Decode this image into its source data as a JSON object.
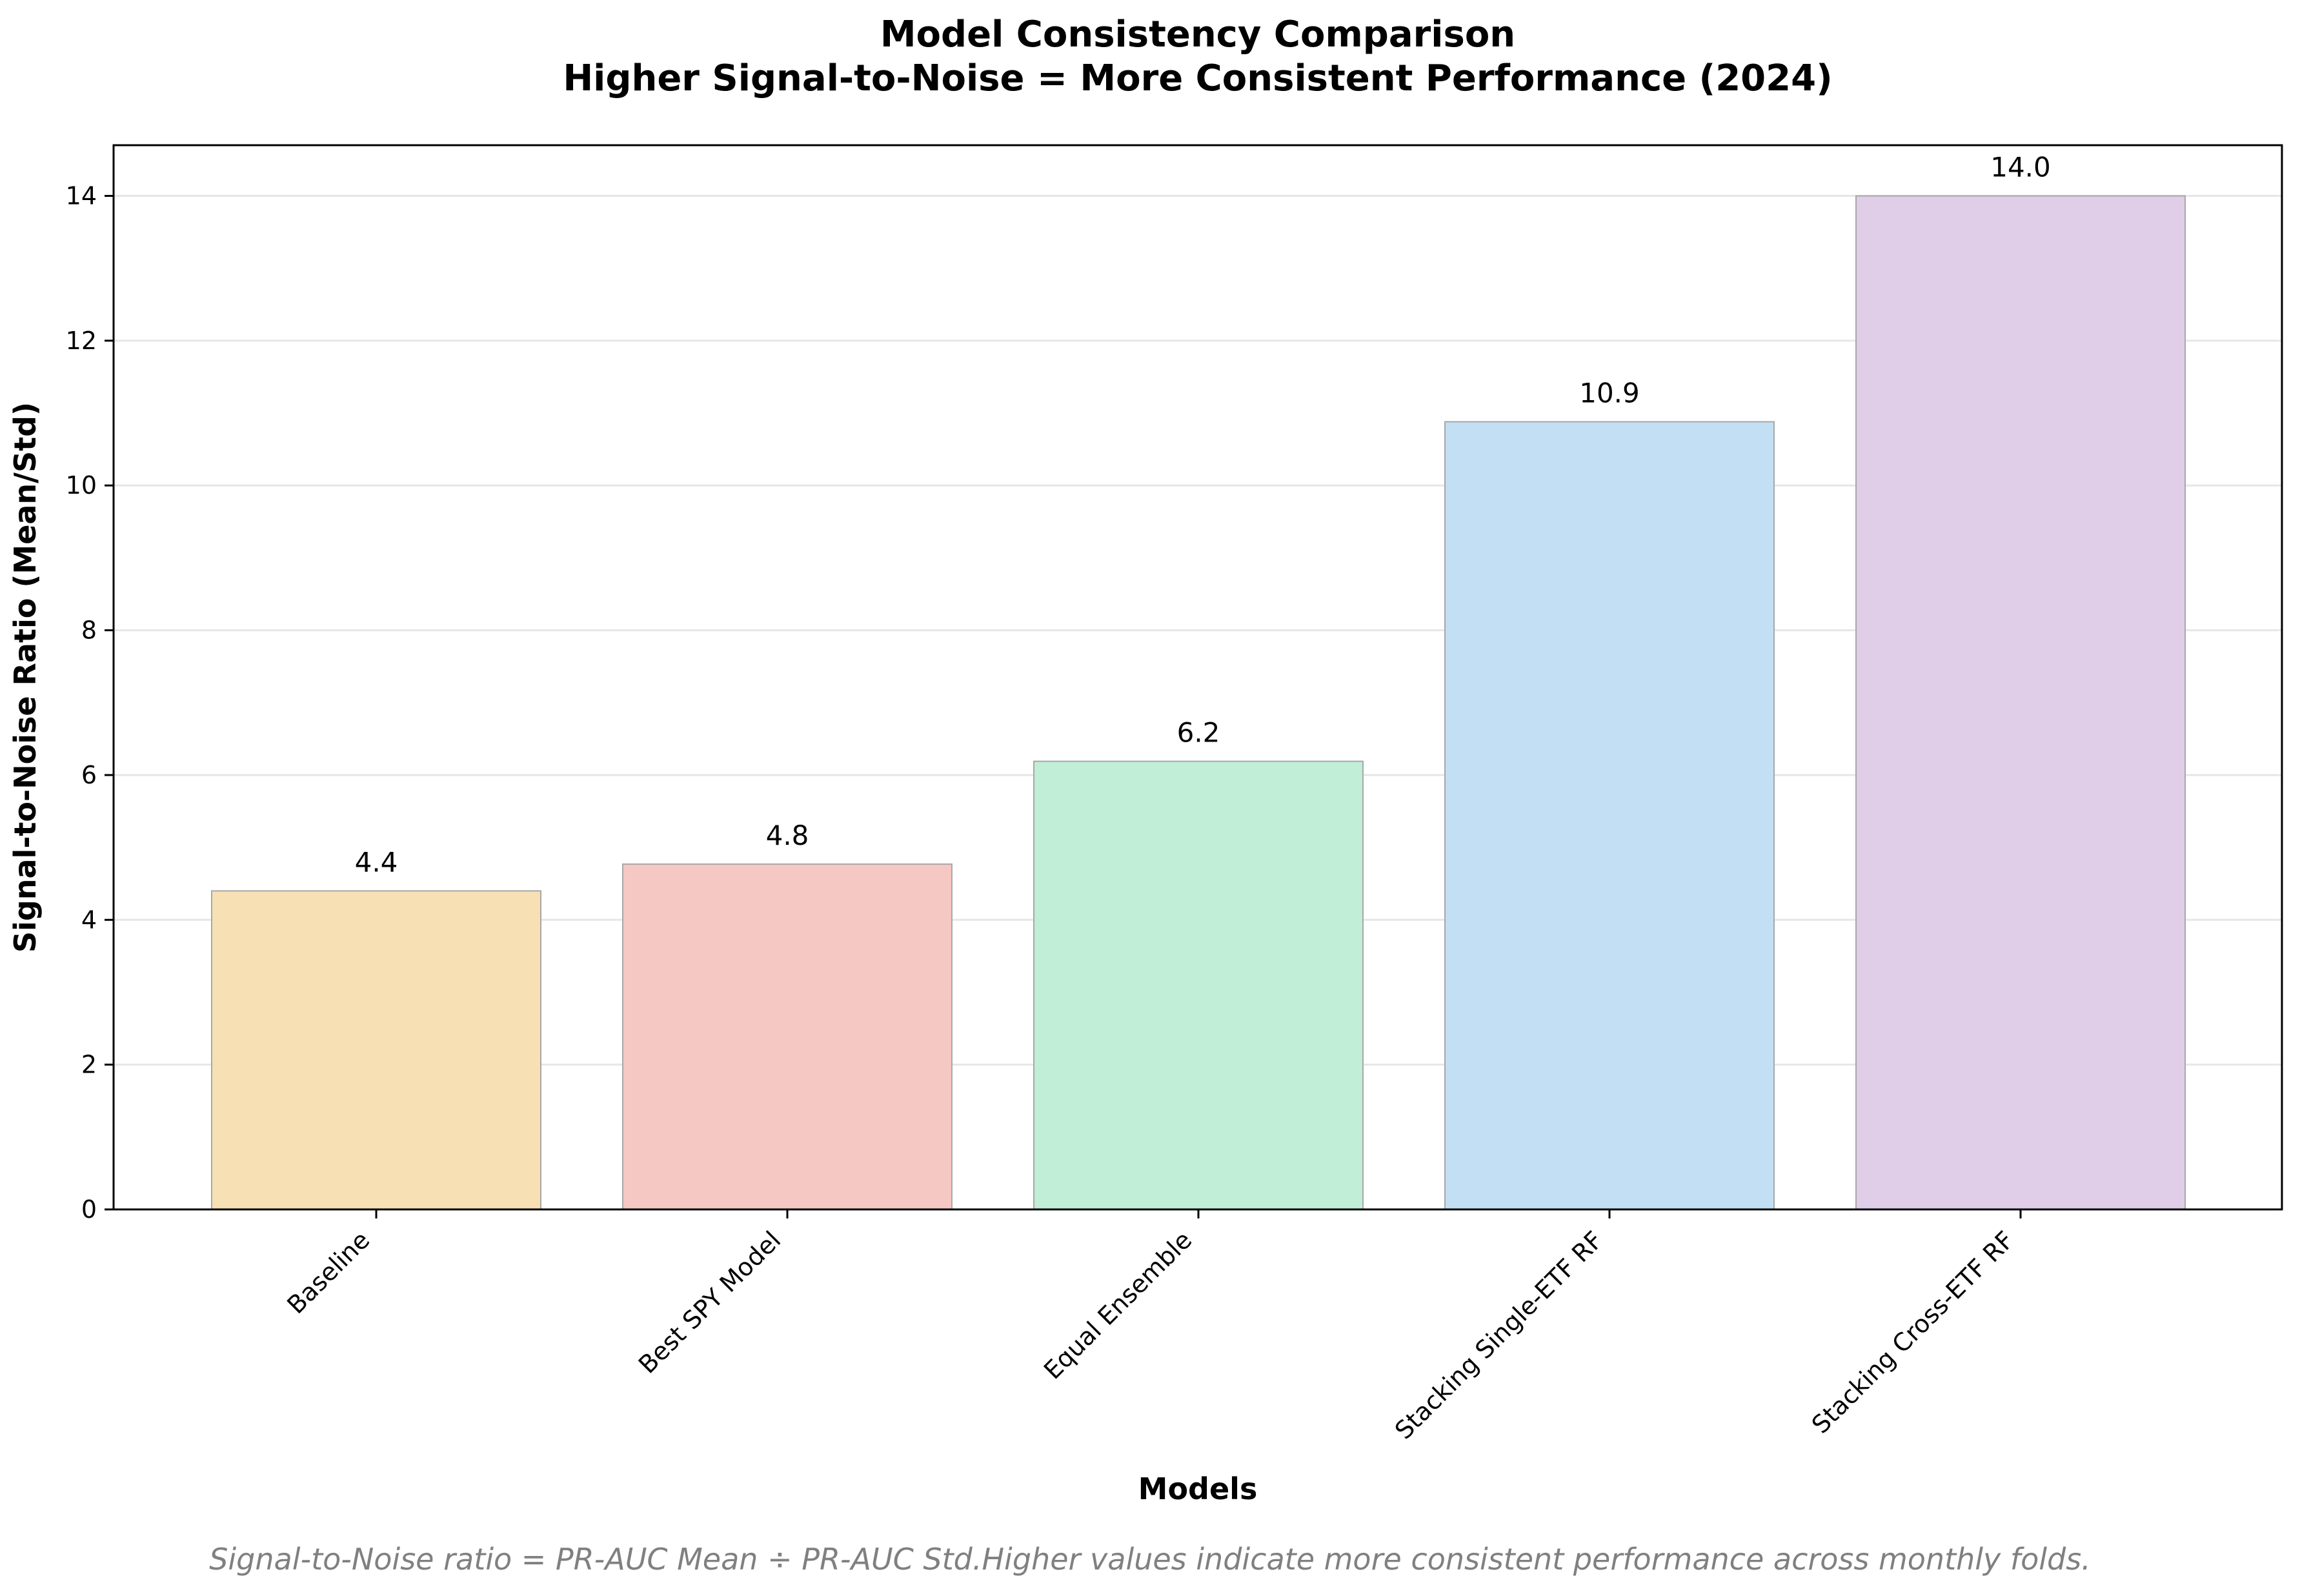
{
  "chart_data": {
    "type": "bar",
    "title": "Model Consistency Comparison",
    "subtitle": "Higher Signal-to-Noise = More Consistent Performance (2024)",
    "xlabel": "Models",
    "ylabel": "Signal-to-Noise Ratio (Mean/Std)",
    "categories": [
      "Baseline",
      "Best SPY Model",
      "Equal Ensemble",
      "Stacking Single-ETF RF",
      "Stacking Cross-ETF RF"
    ],
    "values": [
      4.4,
      4.77,
      6.19,
      10.88,
      14.0
    ],
    "data_labels": [
      "4.4",
      "4.8",
      "6.2",
      "10.9",
      "14.0"
    ],
    "colors": [
      "#f8e0b5",
      "#f5c8c3",
      "#c0eed7",
      "#c2dff3",
      "#e0cde7"
    ],
    "ylim": [
      0,
      14.7
    ],
    "yticks": [
      0,
      2,
      4,
      6,
      8,
      10,
      12,
      14
    ],
    "grid": "y",
    "footnote": "Signal-to-Noise ratio = PR-AUC Mean ÷ PR-AUC Std.Higher values indicate more consistent performance across monthly folds."
  }
}
